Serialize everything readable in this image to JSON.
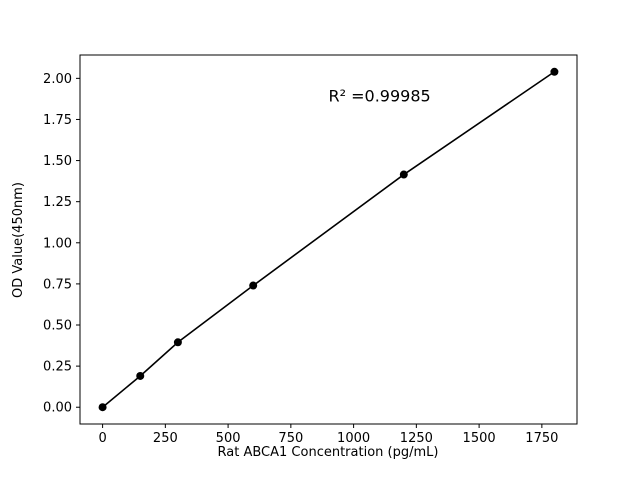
{
  "chart_data": {
    "type": "scatter",
    "title": "",
    "xlabel": "Rat ABCA1 Concentration (pg/mL)",
    "ylabel": "OD Value(450nm)",
    "x": [
      0,
      150,
      300,
      600,
      1200,
      1800
    ],
    "y": [
      0.0,
      0.19,
      0.395,
      0.74,
      1.415,
      2.04
    ],
    "xlim": [
      -90,
      1890
    ],
    "ylim": [
      -0.102,
      2.142
    ],
    "xticks": [
      0,
      250,
      500,
      750,
      1000,
      1250,
      1500,
      1750
    ],
    "xtick_labels": [
      "0",
      "250",
      "500",
      "750",
      "1000",
      "1250",
      "1500",
      "1750"
    ],
    "yticks": [
      0.0,
      0.25,
      0.5,
      0.75,
      1.0,
      1.25,
      1.5,
      1.75,
      2.0
    ],
    "ytick_labels": [
      "0.00",
      "0.25",
      "0.50",
      "0.75",
      "1.00",
      "1.25",
      "1.50",
      "1.75",
      "2.00"
    ],
    "annotation": {
      "text": "R² =0.99985",
      "x": 900,
      "y": 1.86
    },
    "line_connects_points": true,
    "grid": false,
    "legend": "none",
    "colors": {
      "line": "#000000",
      "marker": "#000000",
      "axis": "#000000",
      "background": "#ffffff"
    }
  }
}
